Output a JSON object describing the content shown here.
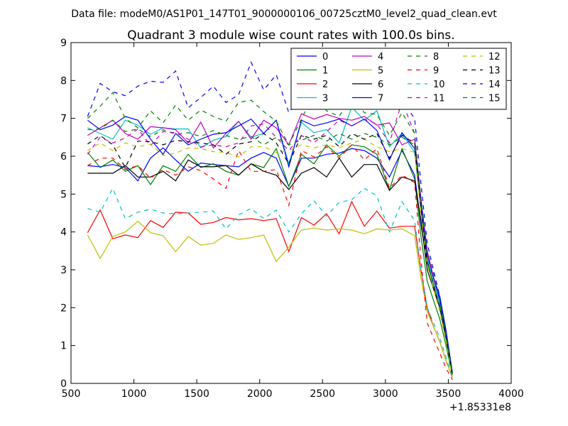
{
  "figure": {
    "suptitle": "Data file: modeM0/AS1P01_147T01_9000000106_00725cztM0_level2_quad_clean.evt",
    "offset_label": "+1.85331e8"
  },
  "chart_data": {
    "type": "line",
    "title": "Quadrant 3 module wise count rates with 100.0s bins.",
    "xlabel": "",
    "ylabel": "",
    "xlim": [
      500,
      4000
    ],
    "ylim": [
      0,
      9
    ],
    "xticks": [
      500,
      1000,
      1500,
      2000,
      2500,
      3000,
      3500,
      4000
    ],
    "yticks": [
      0,
      1,
      2,
      3,
      4,
      5,
      6,
      7,
      8,
      9
    ],
    "x_offset": 185331000,
    "legend_position": "upper right",
    "legend_columns": 4,
    "x": [
      632,
      732,
      832,
      932,
      1032,
      1132,
      1232,
      1332,
      1432,
      1532,
      1632,
      1732,
      1832,
      1932,
      2032,
      2132,
      2232,
      2332,
      2432,
      2532,
      2632,
      2732,
      2832,
      2932,
      3032,
      3132,
      3232,
      3282,
      3332,
      3382,
      3432,
      3482,
      3532
    ],
    "series": [
      {
        "name": "0",
        "color": "#0000ff",
        "style": "solid",
        "values": [
          5.75,
          5.72,
          5.78,
          5.7,
          5.35,
          5.95,
          6.22,
          5.9,
          5.6,
          5.82,
          5.78,
          5.75,
          5.72,
          5.95,
          6.1,
          5.95,
          5.2,
          5.95,
          5.95,
          6.05,
          6.08,
          6.2,
          6.15,
          5.95,
          5.45,
          6.15,
          5.5,
          4.2,
          3.2,
          2.8,
          2.3,
          1.4,
          0.3
        ]
      },
      {
        "name": "1",
        "color": "#008000",
        "style": "solid",
        "values": [
          6.1,
          5.7,
          5.9,
          5.6,
          5.75,
          5.25,
          5.75,
          5.6,
          6.05,
          5.7,
          5.8,
          5.6,
          5.5,
          5.8,
          5.7,
          6.2,
          5.2,
          6.05,
          5.8,
          6.3,
          6.0,
          6.3,
          6.25,
          6.05,
          5.1,
          6.2,
          5.4,
          3.9,
          2.7,
          2.2,
          1.7,
          1.0,
          0.2
        ]
      },
      {
        "name": "2",
        "color": "#ff0000",
        "style": "solid",
        "values": [
          3.98,
          4.58,
          3.82,
          3.92,
          3.85,
          4.3,
          4.12,
          4.52,
          4.5,
          4.2,
          4.25,
          4.38,
          4.32,
          4.35,
          4.3,
          4.35,
          3.48,
          4.38,
          4.18,
          4.48,
          3.95,
          4.8,
          4.15,
          4.55,
          4.1,
          4.15,
          4.15,
          3.0,
          2.0,
          1.5,
          1.1,
          0.6,
          0.15
        ]
      },
      {
        "name": "3",
        "color": "#00bfbf",
        "style": "solid",
        "values": [
          6.75,
          6.6,
          6.45,
          6.95,
          6.82,
          6.58,
          6.75,
          6.72,
          6.72,
          6.22,
          6.42,
          6.52,
          6.92,
          6.5,
          6.6,
          6.95,
          5.8,
          6.9,
          6.62,
          6.7,
          6.35,
          7.3,
          6.95,
          7.2,
          6.25,
          6.6,
          6.1,
          4.7,
          3.3,
          2.7,
          2.1,
          1.3,
          0.25
        ]
      },
      {
        "name": "4",
        "color": "#bf00bf",
        "style": "solid",
        "values": [
          6.55,
          6.75,
          6.95,
          6.6,
          6.45,
          6.78,
          6.75,
          6.7,
          6.35,
          6.9,
          6.22,
          6.6,
          6.92,
          6.45,
          6.95,
          6.75,
          6.3,
          7.12,
          6.98,
          7.1,
          7.0,
          6.95,
          7.05,
          6.82,
          6.88,
          6.3,
          6.45,
          4.9,
          3.5,
          2.8,
          2.2,
          1.3,
          0.25
        ]
      },
      {
        "name": "5",
        "color": "#bfbf00",
        "style": "solid",
        "values": [
          3.92,
          3.3,
          3.88,
          4.0,
          4.28,
          3.98,
          3.9,
          3.48,
          3.88,
          3.65,
          3.7,
          3.92,
          3.8,
          3.85,
          3.92,
          3.22,
          3.6,
          4.05,
          4.1,
          4.05,
          4.08,
          4.05,
          3.95,
          4.08,
          4.05,
          4.08,
          3.9,
          2.8,
          1.9,
          1.5,
          1.1,
          0.6,
          0.15
        ]
      },
      {
        "name": "6",
        "color": "#000000",
        "style": "solid",
        "values": [
          5.55,
          5.55,
          5.55,
          5.75,
          5.45,
          5.45,
          5.6,
          5.35,
          5.9,
          5.72,
          5.72,
          5.75,
          5.5,
          5.8,
          5.6,
          5.5,
          5.12,
          5.55,
          5.7,
          5.45,
          5.95,
          5.45,
          5.78,
          5.78,
          5.1,
          5.45,
          5.35,
          4.3,
          3.0,
          2.5,
          2.0,
          1.2,
          0.25
        ]
      },
      {
        "name": "7",
        "color": "#0000ff",
        "style": "solid",
        "values": [
          6.95,
          6.7,
          6.82,
          7.05,
          6.95,
          6.45,
          6.05,
          6.6,
          6.3,
          6.45,
          6.58,
          6.62,
          6.8,
          6.98,
          6.6,
          6.95,
          5.72,
          6.95,
          6.8,
          6.88,
          6.98,
          6.8,
          6.98,
          6.68,
          5.9,
          6.62,
          6.2,
          4.8,
          3.4,
          2.8,
          2.2,
          1.3,
          0.25
        ]
      },
      {
        "name": "8",
        "color": "#008000",
        "style": "dashed",
        "values": [
          6.7,
          6.72,
          6.95,
          6.65,
          6.72,
          6.52,
          6.7,
          6.58,
          6.62,
          6.52,
          6.68,
          6.55,
          6.45,
          6.52,
          6.3,
          6.5,
          6.3,
          6.42,
          6.55,
          6.4,
          6.6,
          6.45,
          6.6,
          6.5,
          6.3,
          6.5,
          6.3,
          4.6,
          3.2,
          2.6,
          2.0,
          1.2,
          0.25
        ]
      },
      {
        "name": "9",
        "color": "#ff0000",
        "style": "dashed",
        "values": [
          5.75,
          5.95,
          5.95,
          5.65,
          5.75,
          5.42,
          5.65,
          5.5,
          5.72,
          5.62,
          5.4,
          5.15,
          6.15,
          5.6,
          5.6,
          5.65,
          4.7,
          6.15,
          5.98,
          6.25,
          5.95,
          6.3,
          5.9,
          6.2,
          5.15,
          5.5,
          5.3,
          3.3,
          1.6,
          1.2,
          0.8,
          0.4,
          0.1
        ]
      },
      {
        "name": "10",
        "color": "#00bfbf",
        "style": "dashed",
        "values": [
          4.62,
          4.52,
          5.15,
          4.35,
          4.52,
          4.6,
          4.5,
          4.48,
          4.5,
          4.52,
          4.55,
          4.08,
          4.45,
          4.62,
          4.35,
          4.58,
          4.0,
          4.48,
          4.82,
          4.42,
          4.78,
          4.85,
          5.15,
          4.95,
          4.0,
          4.8,
          4.3,
          3.0,
          2.0,
          1.6,
          1.2,
          0.7,
          0.15
        ]
      },
      {
        "name": "11",
        "color": "#bf00bf",
        "style": "dashed",
        "values": [
          6.05,
          6.5,
          6.35,
          6.48,
          6.72,
          6.28,
          6.65,
          6.62,
          6.45,
          6.25,
          6.3,
          6.25,
          6.35,
          6.8,
          6.85,
          6.5,
          6.15,
          6.55,
          6.35,
          6.65,
          6.95,
          6.8,
          6.98,
          6.85,
          6.35,
          7.45,
          6.6,
          4.8,
          3.4,
          2.8,
          2.2,
          1.3,
          0.25
        ]
      },
      {
        "name": "12",
        "color": "#bfbf00",
        "style": "dashed",
        "values": [
          6.15,
          6.35,
          6.15,
          6.35,
          6.25,
          6.32,
          6.02,
          6.08,
          6.22,
          6.2,
          6.12,
          6.1,
          5.98,
          6.25,
          6.25,
          6.1,
          6.15,
          6.3,
          6.22,
          6.3,
          6.22,
          6.35,
          6.45,
          6.25,
          6.12,
          6.2,
          6.1,
          4.5,
          3.1,
          2.5,
          1.9,
          1.1,
          0.2
        ]
      },
      {
        "name": "13",
        "color": "#000000",
        "style": "dashed",
        "values": [
          6.32,
          6.55,
          6.3,
          5.7,
          6.4,
          6.38,
          6.3,
          6.42,
          6.38,
          6.35,
          6.3,
          6.05,
          6.32,
          6.38,
          6.6,
          6.35,
          5.8,
          6.55,
          6.45,
          6.55,
          6.25,
          6.6,
          6.45,
          6.6,
          5.95,
          6.55,
          6.35,
          4.6,
          3.2,
          2.6,
          2.0,
          1.2,
          0.25
        ]
      },
      {
        "name": "14",
        "color": "#0000ff",
        "style": "dashed",
        "values": [
          7.05,
          7.92,
          7.7,
          7.6,
          7.85,
          7.98,
          7.95,
          8.25,
          7.28,
          7.55,
          7.85,
          7.42,
          7.62,
          8.48,
          7.75,
          8.15,
          7.15,
          7.62,
          7.4,
          7.95,
          8.15,
          8.2,
          8.0,
          7.8,
          7.85,
          7.45,
          7.0,
          5.3,
          3.7,
          3.0,
          2.3,
          1.4,
          0.3
        ]
      },
      {
        "name": "15",
        "color": "#008000",
        "style": "dashed",
        "values": [
          7.0,
          7.32,
          7.68,
          7.0,
          6.75,
          7.2,
          6.88,
          7.35,
          6.95,
          7.22,
          7.05,
          6.92,
          7.42,
          7.48,
          7.18,
          6.92,
          6.3,
          6.98,
          7.65,
          7.2,
          7.05,
          7.6,
          7.15,
          7.1,
          6.55,
          7.15,
          6.6,
          4.9,
          3.5,
          2.9,
          2.2,
          1.3,
          0.25
        ]
      }
    ]
  }
}
